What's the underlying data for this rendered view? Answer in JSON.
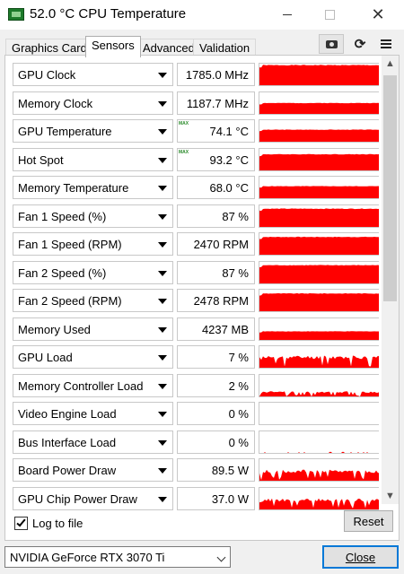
{
  "window": {
    "title": "52.0 °C CPU Temperature",
    "app_icon": "gpu-z-icon",
    "controls": [
      "minimize-icon",
      "maximize-icon",
      "close-icon"
    ]
  },
  "tabs": [
    {
      "label": "Graphics Card",
      "active": false
    },
    {
      "label": "Sensors",
      "active": true
    },
    {
      "label": "Advanced",
      "active": false
    },
    {
      "label": "Validation",
      "active": false
    }
  ],
  "toolbar": {
    "icons": [
      "camera-icon",
      "refresh-icon",
      "menu-icon"
    ]
  },
  "sensors": [
    {
      "name": "GPU Clock",
      "value": "1785.0 MHz",
      "max": false,
      "level": 0.95,
      "pattern": "flat"
    },
    {
      "name": "Memory Clock",
      "value": "1187.7 MHz",
      "max": false,
      "level": 0.55,
      "pattern": "flat"
    },
    {
      "name": "GPU Temperature",
      "value": "74.1 °C",
      "max": true,
      "max_label": "MAX",
      "level": 0.6,
      "pattern": "flat"
    },
    {
      "name": "Hot Spot",
      "value": "93.2 °C",
      "max": true,
      "max_label": "MAX",
      "level": 0.78,
      "pattern": "flat"
    },
    {
      "name": "Memory Temperature",
      "value": "68.0 °C",
      "max": false,
      "level": 0.6,
      "pattern": "flat"
    },
    {
      "name": "Fan 1 Speed (%)",
      "value": "87 %",
      "max": false,
      "level": 0.87,
      "pattern": "flat"
    },
    {
      "name": "Fan 1 Speed (RPM)",
      "value": "2470 RPM",
      "max": false,
      "level": 0.85,
      "pattern": "flat"
    },
    {
      "name": "Fan 2 Speed (%)",
      "value": "87 %",
      "max": false,
      "level": 0.87,
      "pattern": "flat"
    },
    {
      "name": "Fan 2 Speed (RPM)",
      "value": "2478 RPM",
      "max": false,
      "level": 0.85,
      "pattern": "flat"
    },
    {
      "name": "Memory Used",
      "value": "4237 MB",
      "max": false,
      "level": 0.45,
      "pattern": "flat"
    },
    {
      "name": "GPU Load",
      "value": "7 %",
      "max": false,
      "level": 0.6,
      "pattern": "spiky"
    },
    {
      "name": "Memory Controller Load",
      "value": "2 %",
      "max": false,
      "level": 0.3,
      "pattern": "spiky"
    },
    {
      "name": "Video Engine Load",
      "value": "0 %",
      "max": false,
      "level": 0.0,
      "pattern": "empty"
    },
    {
      "name": "Bus Interface Load",
      "value": "0 %",
      "max": false,
      "level": 0.06,
      "pattern": "sparse"
    },
    {
      "name": "Board Power Draw",
      "value": "89.5 W",
      "max": false,
      "level": 0.55,
      "pattern": "spiky"
    },
    {
      "name": "GPU Chip Power Draw",
      "value": "37.0 W",
      "max": false,
      "level": 0.55,
      "pattern": "spiky"
    }
  ],
  "graph_color": "#ff0000",
  "scrollbar": {
    "up_icon": "▲",
    "down_icon": "▼"
  },
  "log": {
    "label": "Log to file",
    "checked": true
  },
  "reset_label": "Reset",
  "gpu_select": {
    "value": "NVIDIA GeForce RTX 3070 Ti"
  },
  "close_label": "Close"
}
